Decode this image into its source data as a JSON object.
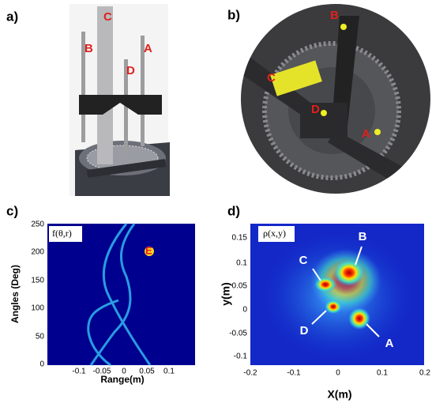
{
  "panels": [
    {
      "label": "a)",
      "markers": [
        "C",
        "B",
        "A",
        "D"
      ]
    },
    {
      "label": "b)",
      "markers": [
        "B",
        "C",
        "D",
        "A"
      ]
    },
    {
      "label": "c)",
      "inset": "f(θ,r)",
      "marker": "E",
      "x_label": "Range(m)",
      "y_label": "Angles (Deg)",
      "x_ticks": [
        "-0.1",
        "-0.05",
        "0",
        "0.05",
        "0.1"
      ],
      "y_ticks": [
        "250",
        "200",
        "150",
        "100",
        "50",
        "0"
      ]
    },
    {
      "label": "d)",
      "inset": "ρ(x,y)",
      "markers": [
        "B",
        "C",
        "D",
        "A"
      ],
      "x_label": "X(m)",
      "y_label": "y(m)",
      "x_ticks": [
        "-0.2",
        "-0.1",
        "0",
        "0.1",
        "0.2"
      ],
      "y_ticks": [
        "0.15",
        "0.1",
        "0.05",
        "0",
        "-0.05",
        "-0.1"
      ]
    }
  ]
}
